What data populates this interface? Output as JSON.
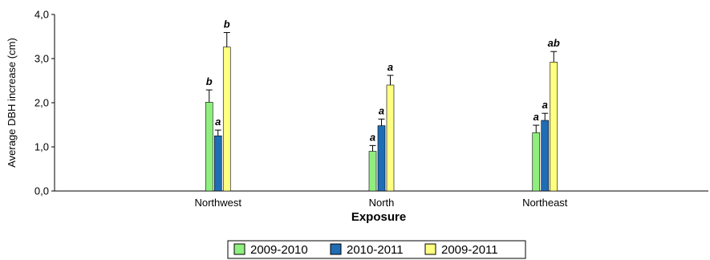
{
  "chart_data": {
    "type": "bar",
    "title": "",
    "xlabel": "Exposure",
    "ylabel": "Average DBH increase (cm)",
    "ylim": [
      0,
      4
    ],
    "yticks": [
      "0,0",
      "1,0",
      "2,0",
      "3,0",
      "4,0"
    ],
    "categories": [
      "Northwest",
      "North",
      "Northeast"
    ],
    "grid": false,
    "legend_position": "bottom",
    "error_bars": true,
    "series": [
      {
        "name": "2009-2010",
        "color": "#8FEF7E",
        "values": [
          2.01,
          0.9,
          1.32
        ],
        "errors": [
          0.28,
          0.13,
          0.17
        ],
        "labels": [
          "b",
          "a",
          "a"
        ]
      },
      {
        "name": "2010-2011",
        "color": "#1F6DB4",
        "values": [
          1.25,
          1.48,
          1.6
        ],
        "errors": [
          0.13,
          0.15,
          0.16
        ],
        "labels": [
          "a",
          "a",
          "a"
        ]
      },
      {
        "name": "2009-2011",
        "color": "#FFFF80",
        "values": [
          3.26,
          2.4,
          2.92
        ],
        "errors": [
          0.33,
          0.22,
          0.24
        ],
        "labels": [
          "b",
          "a",
          "ab"
        ]
      }
    ]
  }
}
